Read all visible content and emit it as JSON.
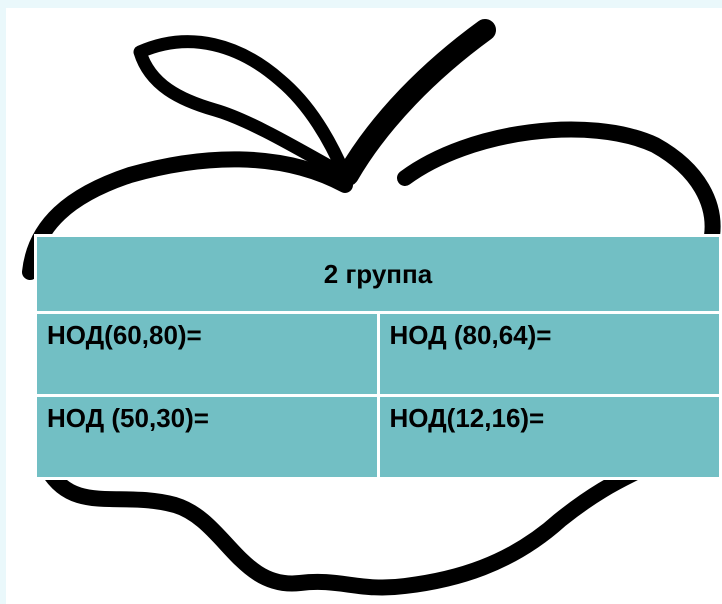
{
  "table": {
    "header": "2 группа",
    "rows": [
      [
        "НОД(60,80)=",
        "НОД (80,64)="
      ],
      [
        "НОД (50,30)=",
        "НОД(12,16)="
      ]
    ]
  }
}
